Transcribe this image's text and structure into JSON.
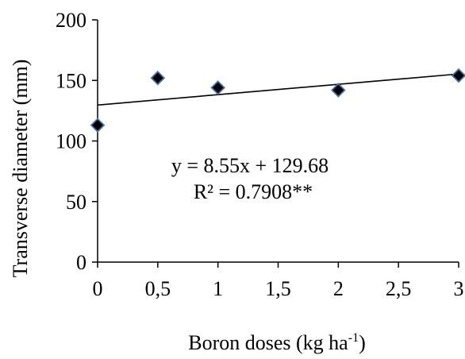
{
  "chart_data": {
    "type": "scatter",
    "xlabel": "Boron doses (kg ha",
    "xlabel_superscript": "-1",
    "xlabel_suffix": ")",
    "ylabel": "Transverse diameter (mm)",
    "x_tick_labels": [
      "0",
      "0,5",
      "1",
      "1,5",
      "2",
      "2,5",
      "3"
    ],
    "x_tick_values": [
      0,
      0.5,
      1,
      1.5,
      2,
      2.5,
      3
    ],
    "y_tick_labels": [
      "0",
      "50",
      "100",
      "150",
      "200"
    ],
    "y_tick_values": [
      0,
      50,
      100,
      150,
      200
    ],
    "xlim": [
      0,
      3
    ],
    "ylim": [
      0,
      200
    ],
    "grid": false,
    "series": [
      {
        "x": [
          0,
          0.5,
          1,
          2,
          3
        ],
        "y": [
          113,
          152,
          144,
          142,
          154
        ],
        "marker": "diamond",
        "marker_color": "#000000",
        "marker_edge_color": "#4a6fa5"
      }
    ],
    "trendline": {
      "slope": 8.55,
      "intercept": 129.68,
      "x_range": [
        0,
        3
      ],
      "color": "#000000"
    },
    "annotations": {
      "equation": "y = 8.55x + 129.68",
      "r_squared": "R² = 0.7908**"
    }
  }
}
